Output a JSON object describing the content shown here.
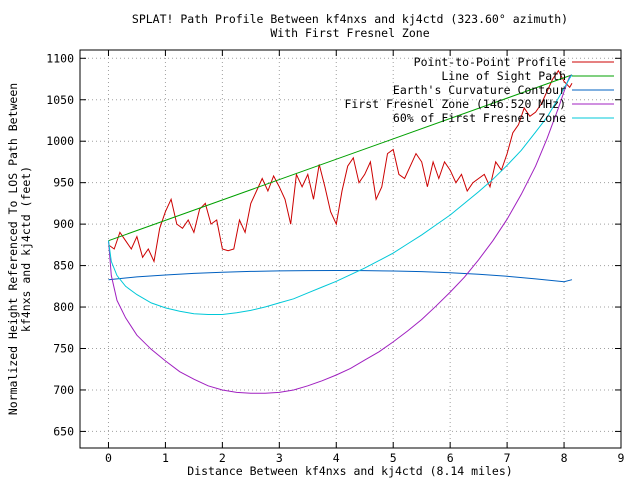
{
  "chart_data": {
    "type": "line",
    "title": "SPLAT! Path Profile Between kf4nxs and kj4ctd (323.60° azimuth)",
    "subtitle": "With First Fresnel Zone",
    "xlabel": "Distance Between kf4nxs and kj4ctd (8.14 miles)",
    "ylabel_line1": "Normalized Height Referenced To LOS Path Between",
    "ylabel_line2": "kf4nxs and kj4ctd (feet)",
    "xlim": [
      -0.5,
      9
    ],
    "ylim": [
      630,
      1110
    ],
    "xticks": [
      0,
      1,
      2,
      3,
      4,
      5,
      6,
      7,
      8,
      9
    ],
    "yticks": [
      650,
      700,
      750,
      800,
      850,
      900,
      950,
      1000,
      1050,
      1100
    ],
    "grid": true,
    "legend_position": "top-right",
    "series": [
      {
        "name": "Point-to-Point Profile",
        "color": "#cc0000",
        "x": [
          0,
          0.1,
          0.2,
          0.3,
          0.4,
          0.5,
          0.6,
          0.7,
          0.8,
          0.9,
          1.0,
          1.1,
          1.2,
          1.3,
          1.4,
          1.5,
          1.6,
          1.7,
          1.8,
          1.9,
          2.0,
          2.1,
          2.2,
          2.3,
          2.4,
          2.5,
          2.6,
          2.7,
          2.8,
          2.9,
          3.0,
          3.1,
          3.2,
          3.3,
          3.4,
          3.5,
          3.6,
          3.7,
          3.8,
          3.9,
          4.0,
          4.1,
          4.2,
          4.3,
          4.4,
          4.5,
          4.6,
          4.7,
          4.8,
          4.9,
          5.0,
          5.1,
          5.2,
          5.3,
          5.4,
          5.5,
          5.6,
          5.7,
          5.8,
          5.9,
          6.0,
          6.1,
          6.2,
          6.3,
          6.4,
          6.5,
          6.6,
          6.7,
          6.8,
          6.9,
          7.0,
          7.1,
          7.2,
          7.3,
          7.4,
          7.5,
          7.6,
          7.7,
          7.8,
          7.9,
          8.0,
          8.1,
          8.14
        ],
        "values": [
          875,
          870,
          890,
          880,
          870,
          885,
          860,
          870,
          855,
          895,
          915,
          930,
          900,
          895,
          905,
          890,
          918,
          925,
          900,
          905,
          870,
          868,
          870,
          905,
          890,
          925,
          940,
          955,
          940,
          958,
          945,
          930,
          900,
          960,
          945,
          960,
          930,
          972,
          945,
          915,
          900,
          940,
          970,
          980,
          950,
          960,
          975,
          930,
          945,
          985,
          990,
          960,
          955,
          970,
          985,
          975,
          945,
          975,
          955,
          975,
          965,
          950,
          960,
          940,
          950,
          955,
          960,
          945,
          975,
          965,
          985,
          1010,
          1020,
          1040,
          1030,
          1035,
          1045,
          1060,
          1075,
          1085,
          1072,
          1065,
          1070
        ]
      },
      {
        "name": "Line of Sight Path",
        "color": "#00a000",
        "x": [
          0,
          8.14
        ],
        "values": [
          880,
          1080
        ]
      },
      {
        "name": "Earth's Curvature Contour",
        "color": "#0060c0",
        "x": [
          0,
          0.5,
          1,
          1.5,
          2,
          2.5,
          3,
          3.5,
          4,
          4.5,
          5,
          5.5,
          6,
          6.5,
          7,
          7.5,
          8,
          8.14
        ],
        "values": [
          833,
          836.3,
          838.7,
          840.6,
          842.0,
          843.0,
          843.6,
          844.0,
          844.1,
          844.0,
          843.5,
          842.7,
          841.4,
          839.5,
          837.1,
          834.0,
          830.6,
          833
        ]
      },
      {
        "name": "First Fresnel Zone (146.520 MHz)",
        "color": "#a020c0",
        "x": [
          0,
          0.05,
          0.15,
          0.3,
          0.5,
          0.75,
          1,
          1.25,
          1.5,
          1.75,
          2,
          2.25,
          2.5,
          2.75,
          3,
          3.25,
          3.5,
          3.75,
          4,
          4.25,
          4.5,
          4.75,
          5,
          5.25,
          5.5,
          5.75,
          6,
          6.25,
          6.5,
          6.75,
          7,
          7.25,
          7.5,
          7.7,
          7.9,
          8.0,
          8.05,
          8.1,
          8.14
        ],
        "values": [
          880,
          838,
          808,
          787,
          766,
          749,
          735,
          722,
          713,
          705,
          700,
          697,
          696,
          696,
          697,
          700,
          705,
          711,
          718,
          726,
          736,
          746,
          758,
          771,
          785,
          801,
          818,
          836,
          857,
          880,
          906,
          936,
          970,
          1003,
          1040,
          1060,
          1070,
          1078,
          1080
        ]
      },
      {
        "name": "60% of First Fresnel Zone",
        "color": "#00c8d8",
        "x": [
          0,
          0.05,
          0.15,
          0.3,
          0.5,
          0.75,
          1,
          1.25,
          1.5,
          1.75,
          2,
          2.25,
          2.5,
          2.75,
          3,
          3.25,
          3.5,
          3.75,
          4,
          4.25,
          4.5,
          4.75,
          5,
          5.25,
          5.5,
          5.75,
          6,
          6.25,
          6.5,
          6.75,
          7,
          7.25,
          7.5,
          7.7,
          7.9,
          8.0,
          8.05,
          8.1,
          8.14
        ],
        "values": [
          880,
          855,
          838,
          825,
          815,
          805,
          799,
          795,
          792,
          791,
          791,
          793,
          796,
          800,
          805,
          810,
          817,
          824,
          831,
          839,
          847,
          856,
          865,
          876,
          887,
          899,
          911,
          925,
          939,
          954,
          971,
          989,
          1011,
          1029,
          1052,
          1064,
          1070,
          1076,
          1080
        ]
      }
    ]
  }
}
